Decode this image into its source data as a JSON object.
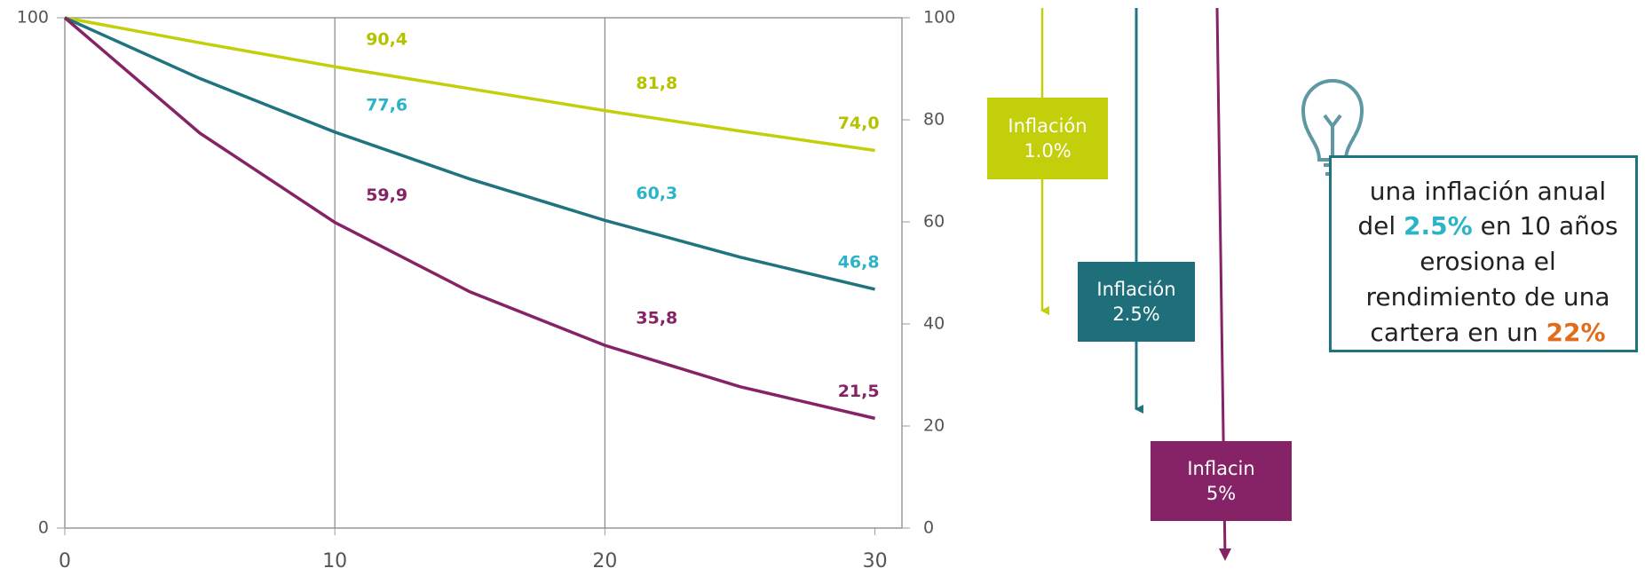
{
  "chart_data": {
    "type": "line",
    "x": [
      0,
      5,
      10,
      15,
      20,
      25,
      30
    ],
    "xlim": [
      0,
      31
    ],
    "xticks": [
      0,
      10,
      20,
      30
    ],
    "ylim": [
      0,
      100
    ],
    "yticks": [
      0,
      100
    ],
    "y2lim": [
      0,
      100
    ],
    "y2ticks": [
      0,
      20,
      40,
      60,
      80,
      100
    ],
    "grid": true,
    "series": [
      {
        "color": "#c3cf0a",
        "label_color": "#b5c200",
        "values": [
          100,
          95.1,
          90.4,
          86.1,
          81.8,
          77.8,
          74.0
        ],
        "value_labels": [
          null,
          null,
          "90,4",
          null,
          "81,8",
          null,
          "74,0"
        ]
      },
      {
        "color": "#1f7480",
        "label_color": "#2bb4c8",
        "values": [
          100,
          88.1,
          77.6,
          68.4,
          60.3,
          53.1,
          46.8
        ],
        "value_labels": [
          null,
          null,
          "77,6",
          null,
          "60,3",
          null,
          "46,8"
        ]
      },
      {
        "color": "#862366",
        "label_color": "#862366",
        "values": [
          100,
          77.4,
          59.9,
          46.3,
          35.8,
          27.7,
          21.5
        ],
        "value_labels": [
          null,
          null,
          "59,9",
          null,
          "35,8",
          null,
          "21,5"
        ]
      }
    ]
  },
  "diagram": {
    "boxes": [
      {
        "lines": [
          "Inflación",
          "1.0%"
        ]
      },
      {
        "lines": [
          "Inflación",
          "2.5%"
        ]
      },
      {
        "lines": [
          "Inflacin",
          "5%"
        ]
      }
    ],
    "callout": {
      "parts": [
        "una inflación anual del ",
        "2.5%",
        " en 10 años erosiona el rendimiento de una cartera en un ",
        "22%"
      ]
    }
  }
}
